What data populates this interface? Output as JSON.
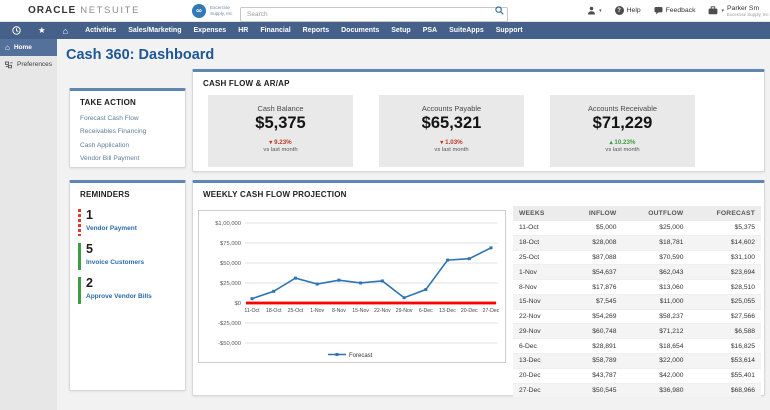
{
  "theme": {
    "nav": "#45618a",
    "panel_accent": "#5d87b2",
    "title": "#1e5796"
  },
  "header": {
    "brand_primary": "ORACLE",
    "brand_secondary": "NETSUITE",
    "company_logo_line1": "Excercise",
    "company_logo_line2": "Supply, Inc",
    "search_placeholder": "Search",
    "help_label": "Help",
    "feedback_label": "Feedback",
    "user_name": "Parker Sm",
    "user_company": "Excercise Supply, Inc"
  },
  "nav": {
    "items": [
      "Activities",
      "Sales/Marketing",
      "Expenses",
      "HR",
      "Financial",
      "Reports",
      "Documents",
      "Setup",
      "PSA",
      "SuiteApps",
      "Support"
    ]
  },
  "sidebar": {
    "home": "Home",
    "preferences": "Preferences"
  },
  "page_title": "Cash 360: Dashboard",
  "take_action": {
    "title": "TAKE ACTION",
    "links": [
      "Forecast Cash Flow",
      "Receivables Financing",
      "Cash Application",
      "Vendor Bill Payment"
    ]
  },
  "cash_flow": {
    "title": "CASH FLOW & AR/AP",
    "metrics": [
      {
        "label": "Cash Balance",
        "value": "$5,375",
        "arrow": "▾",
        "change": "9.23%",
        "change_color": "#c0392b",
        "note": "vs last month"
      },
      {
        "label": "Accounts Payable",
        "value": "$65,321",
        "arrow": "▾",
        "change": "1.03%",
        "change_color": "#c0392b",
        "note": "vs last month"
      },
      {
        "label": "Accounts Receivable",
        "value": "$71,229",
        "arrow": "▴",
        "change": "10.23%",
        "change_color": "#3f9c46",
        "note": "vs last month"
      }
    ]
  },
  "reminders": {
    "title": "REMINDERS",
    "items": [
      {
        "count": "1",
        "label": "Vendor Payment",
        "accent_color": "#e03a2f",
        "accent_style": "dashed"
      },
      {
        "count": "5",
        "label": "Invoice Customers",
        "accent_color": "#3f9c46",
        "accent_style": "solid"
      },
      {
        "count": "2",
        "label": "Approve Vendor Bills",
        "accent_color": "#3f9c46",
        "accent_style": "solid"
      }
    ]
  },
  "projection": {
    "title": "WEEKLY CASH FLOW PROJECTION",
    "table": {
      "headers": [
        "WEEKS",
        "INFLOW",
        "OUTFLOW",
        "FORECAST"
      ],
      "rows": [
        [
          "11-Oct",
          "$5,000",
          "$25,000",
          "$5,375"
        ],
        [
          "18-Oct",
          "$28,008",
          "$18,781",
          "$14,602"
        ],
        [
          "25-Oct",
          "$87,088",
          "$70,590",
          "$31,100"
        ],
        [
          "1-Nov",
          "$54,637",
          "$62,043",
          "$23,694"
        ],
        [
          "8-Nov",
          "$17,876",
          "$13,060",
          "$28,510"
        ],
        [
          "15-Nov",
          "$7,545",
          "$11,000",
          "$25,055"
        ],
        [
          "22-Nov",
          "$54,269",
          "$58,237",
          "$27,566"
        ],
        [
          "29-Nov",
          "$60,748",
          "$71,212",
          "$6,588"
        ],
        [
          "6-Dec",
          "$28,891",
          "$18,654",
          "$16,825"
        ],
        [
          "13-Dec",
          "$58,789",
          "$22,000",
          "$53,614"
        ],
        [
          "20-Dec",
          "$43,787",
          "$42,000",
          "$55,401"
        ],
        [
          "27-Dec",
          "$50,545",
          "$36,980",
          "$68,966"
        ]
      ]
    }
  },
  "chart_data": {
    "type": "line",
    "title": "WEEKLY CASH FLOW PROJECTION",
    "categories": [
      "11-Oct",
      "18-Oct",
      "25-Oct",
      "1-Nov",
      "8-Nov",
      "15-Nov",
      "22-Nov",
      "29-Nov",
      "6-Dec",
      "13-Dec",
      "20-Dec",
      "27-Dec"
    ],
    "series": [
      {
        "name": "Forecast",
        "values": [
          5375,
          14602,
          31100,
          23694,
          28510,
          25055,
          27566,
          6588,
          16825,
          53614,
          55401,
          68966
        ],
        "color": "#2e74b5"
      }
    ],
    "baseline": {
      "value": 0,
      "color": "#fe0000"
    },
    "ylim": [
      -50000,
      100000
    ],
    "ytick_step": 25000,
    "ytick_labels": [
      "$1,00,000",
      "$75,000",
      "$50,000",
      "$25,000",
      "$0",
      "-$25,000",
      "-$50,000"
    ],
    "xlabel": "",
    "ylabel": "",
    "legend": [
      "Forecast"
    ],
    "legend_position": "bottom",
    "grid": true
  }
}
